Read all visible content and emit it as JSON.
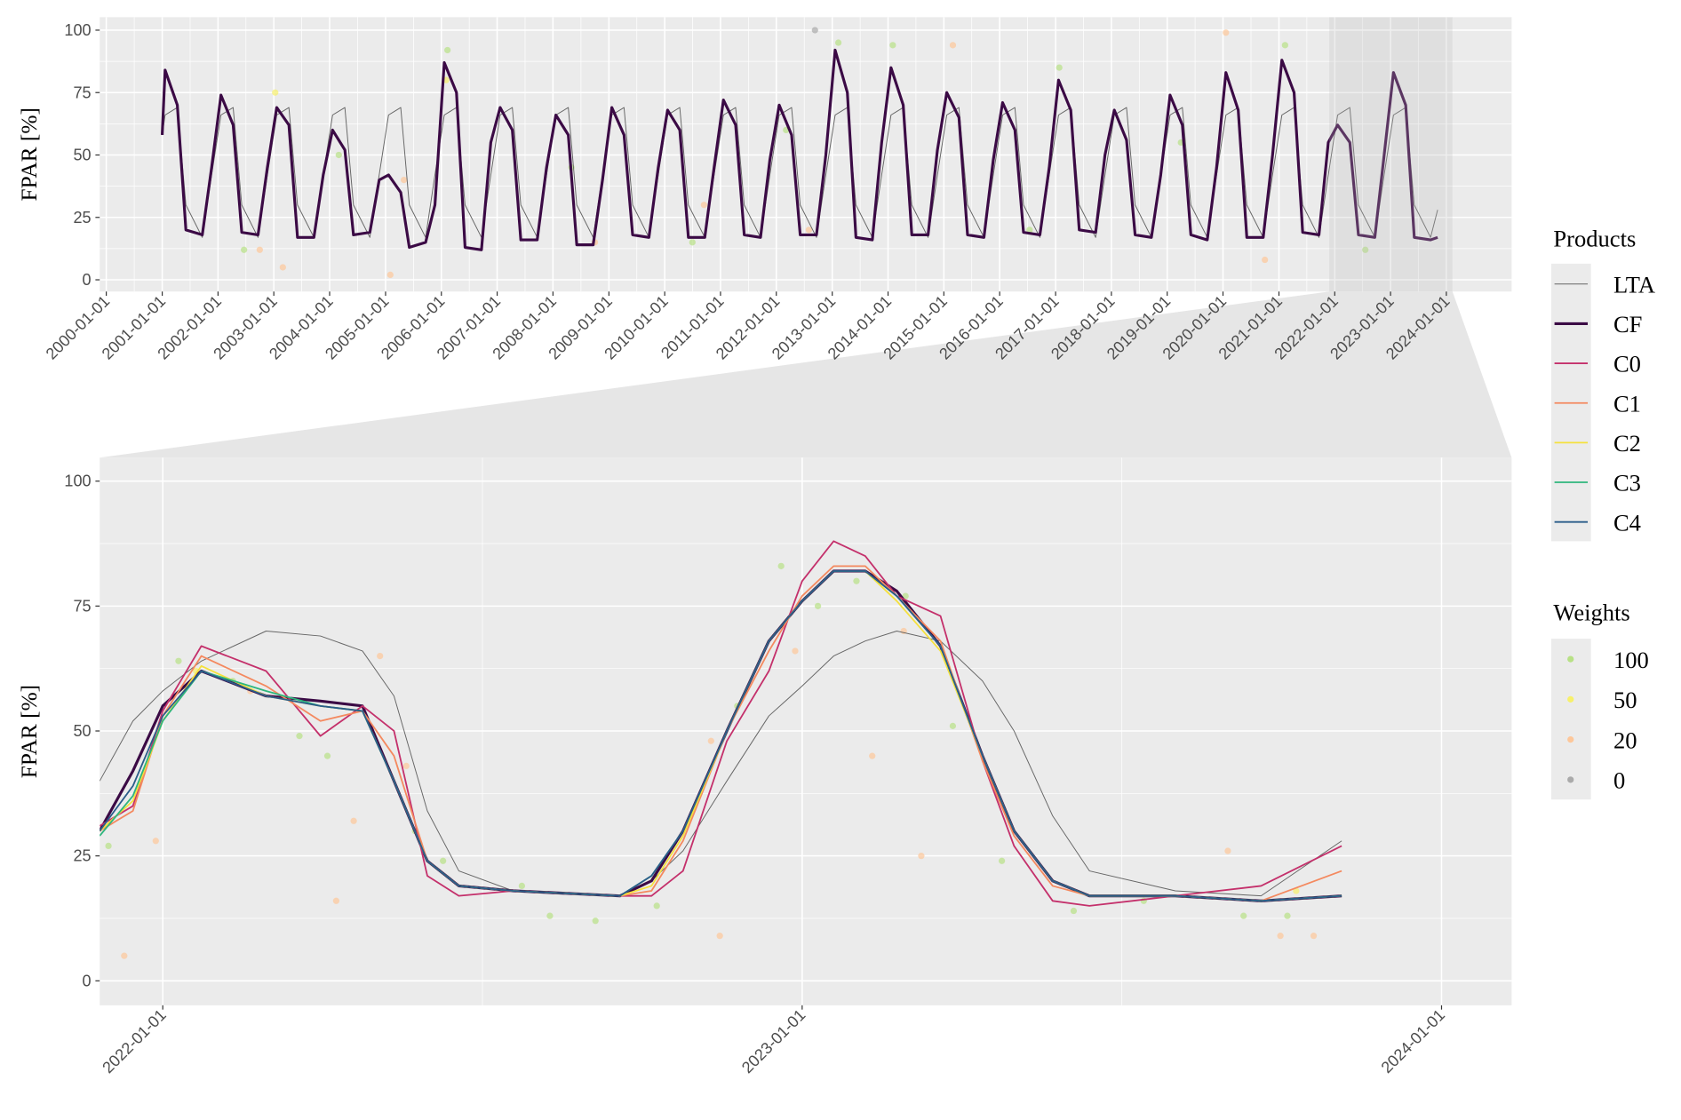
{
  "legend": {
    "products_title": "Products",
    "weights_title": "Weights"
  },
  "chart_data": [
    {
      "type": "line",
      "ylabel": "FPAR [%]",
      "xlim": [
        "1999-11-19",
        "2025-03-03"
      ],
      "ylim": [
        -4.7,
        105.2
      ],
      "xticks": [
        "2000-01-01",
        "2001-01-01",
        "2002-01-01",
        "2003-01-01",
        "2004-01-01",
        "2005-01-01",
        "2006-01-01",
        "2007-01-01",
        "2008-01-01",
        "2009-01-01",
        "2010-01-01",
        "2011-01-01",
        "2012-01-01",
        "2013-01-01",
        "2014-01-01",
        "2015-01-01",
        "2016-01-01",
        "2017-01-01",
        "2018-01-01",
        "2019-01-01",
        "2020-01-01",
        "2021-01-01",
        "2022-01-01",
        "2023-01-01",
        "2024-01-01"
      ],
      "yticks": [
        0,
        25,
        50,
        75,
        100
      ],
      "grid": true,
      "x": [
        "2001-01-01",
        "2001-01-20",
        "2001-04-10",
        "2001-06-05",
        "2001-09-20",
        "2001-11-20",
        "2002-01-20",
        "2002-04-10",
        "2002-06-05",
        "2002-09-20",
        "2002-11-20",
        "2003-01-20",
        "2003-04-10",
        "2003-06-05",
        "2003-09-20",
        "2003-11-20",
        "2004-01-20",
        "2004-04-10",
        "2004-06-05",
        "2004-09-20",
        "2004-11-20",
        "2005-01-20",
        "2005-04-10",
        "2005-06-05",
        "2005-09-20",
        "2005-11-20",
        "2006-01-20",
        "2006-04-10",
        "2006-06-05",
        "2006-09-20",
        "2006-11-20",
        "2007-01-20",
        "2007-04-10",
        "2007-06-05",
        "2007-09-20",
        "2007-11-20",
        "2008-01-20",
        "2008-04-10",
        "2008-06-05",
        "2008-09-20",
        "2008-11-20",
        "2009-01-20",
        "2009-04-10",
        "2009-06-05",
        "2009-09-20",
        "2009-11-20",
        "2010-01-20",
        "2010-04-10",
        "2010-06-05",
        "2010-09-20",
        "2010-11-20",
        "2011-01-20",
        "2011-04-10",
        "2011-06-05",
        "2011-09-20",
        "2011-11-20",
        "2012-01-20",
        "2012-04-10",
        "2012-06-05",
        "2012-09-20",
        "2012-11-20",
        "2013-01-20",
        "2013-04-10",
        "2013-06-05",
        "2013-09-20",
        "2013-11-20",
        "2014-01-20",
        "2014-04-10",
        "2014-06-05",
        "2014-09-20",
        "2014-11-20",
        "2015-01-20",
        "2015-04-10",
        "2015-06-05",
        "2015-09-20",
        "2015-11-20",
        "2016-01-20",
        "2016-04-10",
        "2016-06-05",
        "2016-09-20",
        "2016-11-20",
        "2017-01-20",
        "2017-04-10",
        "2017-06-05",
        "2017-09-20",
        "2017-11-20",
        "2018-01-20",
        "2018-04-10",
        "2018-06-05",
        "2018-09-20",
        "2018-11-20",
        "2019-01-20",
        "2019-04-10",
        "2019-06-05",
        "2019-09-20",
        "2019-11-20",
        "2020-01-20",
        "2020-04-10",
        "2020-06-05",
        "2020-09-20",
        "2020-11-20",
        "2021-01-20",
        "2021-04-10",
        "2021-06-05",
        "2021-09-20",
        "2021-11-20",
        "2022-01-20",
        "2022-04-10",
        "2022-06-05",
        "2022-09-20",
        "2022-11-20",
        "2023-01-20",
        "2023-04-10",
        "2023-06-05",
        "2023-09-20",
        "2023-11-05"
      ],
      "series": [
        {
          "name": "LTA",
          "color": "#666666",
          "values": [
            58,
            66,
            69,
            30,
            17,
            42,
            66,
            69,
            30,
            17,
            42,
            66,
            69,
            30,
            17,
            42,
            66,
            69,
            30,
            17,
            42,
            66,
            69,
            30,
            17,
            42,
            66,
            69,
            30,
            17,
            42,
            66,
            69,
            30,
            17,
            42,
            66,
            69,
            30,
            17,
            42,
            66,
            69,
            30,
            17,
            42,
            66,
            69,
            30,
            17,
            42,
            66,
            69,
            30,
            17,
            42,
            66,
            69,
            30,
            17,
            42,
            66,
            69,
            30,
            17,
            42,
            66,
            69,
            30,
            17,
            42,
            66,
            69,
            30,
            17,
            42,
            66,
            69,
            30,
            17,
            42,
            66,
            69,
            30,
            17,
            42,
            66,
            69,
            30,
            17,
            42,
            66,
            69,
            30,
            17,
            42,
            66,
            69,
            30,
            17,
            42,
            66,
            69,
            30,
            17,
            42,
            66,
            69,
            30,
            17,
            42,
            66,
            69,
            30,
            17,
            28
          ]
        },
        {
          "name": "CF",
          "color": "#3b0a45",
          "values": [
            58,
            84,
            70,
            20,
            18,
            45,
            74,
            62,
            19,
            18,
            45,
            69,
            62,
            17,
            17,
            42,
            60,
            52,
            18,
            19,
            40,
            42,
            35,
            13,
            15,
            30,
            87,
            75,
            13,
            12,
            55,
            69,
            60,
            16,
            16,
            45,
            66,
            58,
            14,
            14,
            40,
            69,
            58,
            18,
            17,
            45,
            68,
            60,
            17,
            17,
            45,
            72,
            62,
            18,
            17,
            48,
            70,
            58,
            18,
            18,
            50,
            92,
            75,
            17,
            16,
            55,
            85,
            70,
            18,
            18,
            52,
            75,
            65,
            18,
            17,
            48,
            71,
            60,
            19,
            18,
            45,
            80,
            68,
            20,
            19,
            50,
            68,
            56,
            18,
            17,
            42,
            74,
            62,
            18,
            16,
            45,
            83,
            68,
            17,
            17,
            50,
            88,
            75,
            19,
            18,
            55,
            62,
            55,
            18,
            17,
            50,
            83,
            70,
            17,
            16,
            17
          ]
        }
      ],
      "points": [
        {
          "name": "100",
          "color": "#b8e186",
          "x": [
            "2002-06-20",
            "2004-03-01",
            "2006-02-10",
            "2008-05-01",
            "2010-07-01",
            "2012-03-05",
            "2013-02-10",
            "2014-02-01",
            "2016-07-15",
            "2017-01-25",
            "2019-04-01",
            "2021-02-10",
            "2022-07-20"
          ],
          "values": [
            12,
            50,
            92,
            45,
            15,
            60,
            95,
            94,
            20,
            85,
            55,
            94,
            12
          ]
        },
        {
          "name": "50",
          "color": "#f7f06b",
          "x": [
            "2003-01-10",
            "2006-02-01"
          ],
          "values": [
            75,
            80
          ]
        },
        {
          "name": "20",
          "color": "#fdc79a",
          "x": [
            "2002-10-01",
            "2003-03-01",
            "2005-02-01",
            "2005-05-01",
            "2008-10-01",
            "2010-09-15",
            "2012-08-01",
            "2015-03-01",
            "2020-01-20",
            "2020-10-01"
          ],
          "values": [
            12,
            5,
            2,
            40,
            15,
            30,
            20,
            94,
            99,
            8
          ]
        },
        {
          "name": "0",
          "color": "#aaaaaa",
          "x": [
            "2012-09-10"
          ],
          "values": [
            100
          ]
        }
      ]
    },
    {
      "type": "line",
      "ylabel": "FPAR [%]",
      "xlim": [
        "2021-11-26",
        "2024-02-10"
      ],
      "ylim": [
        -4.9,
        104.7
      ],
      "xticks": [
        "2022-01-01",
        "2023-01-01",
        "2024-01-01"
      ],
      "yticks": [
        0,
        25,
        50,
        75,
        100
      ],
      "grid": true,
      "x": [
        "2021-11-26",
        "2021-12-15",
        "2022-01-01",
        "2022-01-23",
        "2022-03-01",
        "2022-04-01",
        "2022-04-25",
        "2022-05-13",
        "2022-06-01",
        "2022-06-19",
        "2022-07-20",
        "2022-09-19",
        "2022-10-07",
        "2022-10-25",
        "2022-11-19",
        "2022-12-13",
        "2023-01-01",
        "2023-01-19",
        "2023-02-06",
        "2023-02-24",
        "2023-03-21",
        "2023-04-14",
        "2023-05-02",
        "2023-05-24",
        "2023-06-14",
        "2023-08-02",
        "2023-09-20",
        "2023-11-05"
      ],
      "series": [
        {
          "name": "LTA",
          "color": "#666666",
          "values": [
            40,
            52,
            58,
            64,
            70,
            69,
            66,
            57,
            34,
            22,
            18,
            17,
            20,
            26,
            40,
            53,
            59,
            65,
            68,
            70,
            68,
            60,
            50,
            33,
            22,
            18,
            17,
            28
          ]
        },
        {
          "name": "CF",
          "color": "#3b0a45",
          "values": [
            30,
            42,
            55,
            62,
            57,
            56,
            55,
            40,
            24,
            19,
            18,
            17,
            20,
            30,
            50,
            68,
            76,
            82,
            82,
            78,
            67,
            45,
            30,
            20,
            17,
            17,
            16,
            17
          ]
        },
        {
          "name": "C0",
          "color": "#c4306b",
          "values": [
            31,
            35,
            54,
            67,
            62,
            49,
            55,
            50,
            21,
            17,
            18,
            17,
            17,
            22,
            48,
            62,
            80,
            88,
            85,
            77,
            73,
            44,
            27,
            16,
            15,
            17,
            19,
            27
          ]
        },
        {
          "name": "C1",
          "color": "#f4895f",
          "values": [
            30,
            34,
            53,
            65,
            59,
            52,
            54,
            45,
            24,
            19,
            18,
            17,
            18,
            28,
            50,
            66,
            77,
            83,
            83,
            77,
            68,
            44,
            29,
            19,
            17,
            17,
            16,
            22
          ]
        },
        {
          "name": "C2",
          "color": "#f5e13d",
          "values": [
            30,
            36,
            52,
            63,
            57,
            55,
            54,
            40,
            24,
            19,
            18,
            17,
            19,
            29,
            50,
            68,
            76,
            82,
            82,
            76,
            66,
            45,
            30,
            20,
            17,
            17,
            16,
            17
          ]
        },
        {
          "name": "C3",
          "color": "#2eb67d",
          "values": [
            29,
            37,
            52,
            62,
            58,
            55,
            54,
            40,
            24,
            19,
            18,
            17,
            21,
            30,
            50,
            68,
            76,
            82,
            82,
            77,
            67,
            45,
            30,
            20,
            17,
            17,
            16,
            17
          ]
        },
        {
          "name": "C4",
          "color": "#2b5c8a",
          "values": [
            30,
            39,
            53,
            62,
            57,
            55,
            54,
            40,
            24,
            19,
            18,
            17,
            21,
            30,
            50,
            68,
            76,
            82,
            82,
            77,
            67,
            45,
            30,
            20,
            17,
            17,
            16,
            17
          ]
        }
      ],
      "points": [
        {
          "name": "100",
          "color": "#b8e186",
          "x": [
            "2021-12-01",
            "2022-01-10",
            "2022-02-10",
            "2022-03-20",
            "2022-04-05",
            "2022-05-25",
            "2022-06-10",
            "2022-07-25",
            "2022-08-10",
            "2022-09-05",
            "2022-10-10",
            "2022-11-25",
            "2022-12-20",
            "2023-01-10",
            "2023-02-01",
            "2023-03-01",
            "2023-03-28",
            "2023-04-25",
            "2023-06-05",
            "2023-07-15",
            "2023-09-10",
            "2023-10-05"
          ],
          "values": [
            27,
            64,
            60,
            49,
            45,
            30,
            24,
            19,
            13,
            12,
            15,
            55,
            83,
            75,
            80,
            77,
            51,
            24,
            14,
            16,
            13,
            13
          ]
        },
        {
          "name": "50",
          "color": "#f7f06b",
          "x": [
            "2022-01-20",
            "2023-10-10"
          ],
          "values": [
            62,
            18
          ]
        },
        {
          "name": "20",
          "color": "#fdc79a",
          "x": [
            "2021-12-10",
            "2021-12-28",
            "2022-02-20",
            "2022-04-10",
            "2022-04-20",
            "2022-05-05",
            "2022-05-20",
            "2022-11-10",
            "2022-11-15",
            "2022-12-28",
            "2023-02-10",
            "2023-02-28",
            "2023-03-10",
            "2023-09-01",
            "2023-10-01",
            "2023-10-20"
          ],
          "values": [
            5,
            28,
            58,
            16,
            32,
            65,
            43,
            48,
            9,
            66,
            45,
            70,
            25,
            26,
            9,
            9
          ]
        }
      ]
    }
  ]
}
